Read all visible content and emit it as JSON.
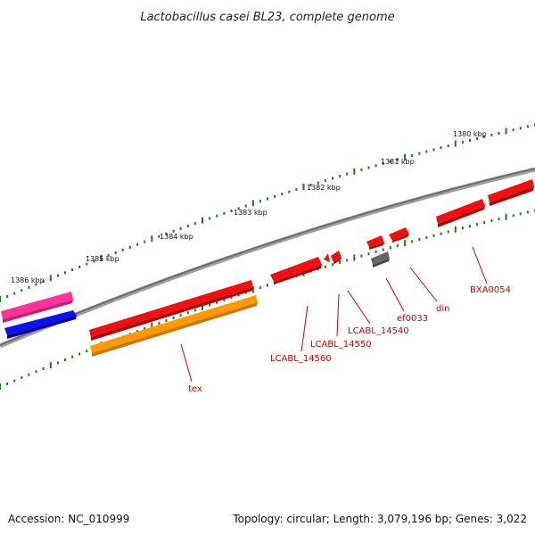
{
  "title": "Lactobacillus casei BL23, complete genome",
  "scale_labels": [
    "1380 kbp",
    "1381 kbp",
    "1382 kbp",
    "1383 kbp",
    "1384 kbp",
    "1385 kbp",
    "1386 kbp"
  ],
  "gene_labels": [
    "BXA0054",
    "din",
    "ef0033",
    "LCABL_14540",
    "LCABL_14550",
    "LCABL_14560",
    "tex"
  ],
  "footer": {
    "accession": "Accession: NC_010999",
    "summary": "Topology: circular; Length: 3,079,196 bp; Genes: 3,022"
  },
  "colors": {
    "backbone": "#7f7f7f",
    "tick": "#1a7a1a",
    "gene_red": "#ee1111",
    "gene_orange": "#ff9900",
    "gene_pink": "#ff3399",
    "gene_blue": "#1111ee",
    "gene_gray": "#666666",
    "label_red": "#cc0000"
  }
}
